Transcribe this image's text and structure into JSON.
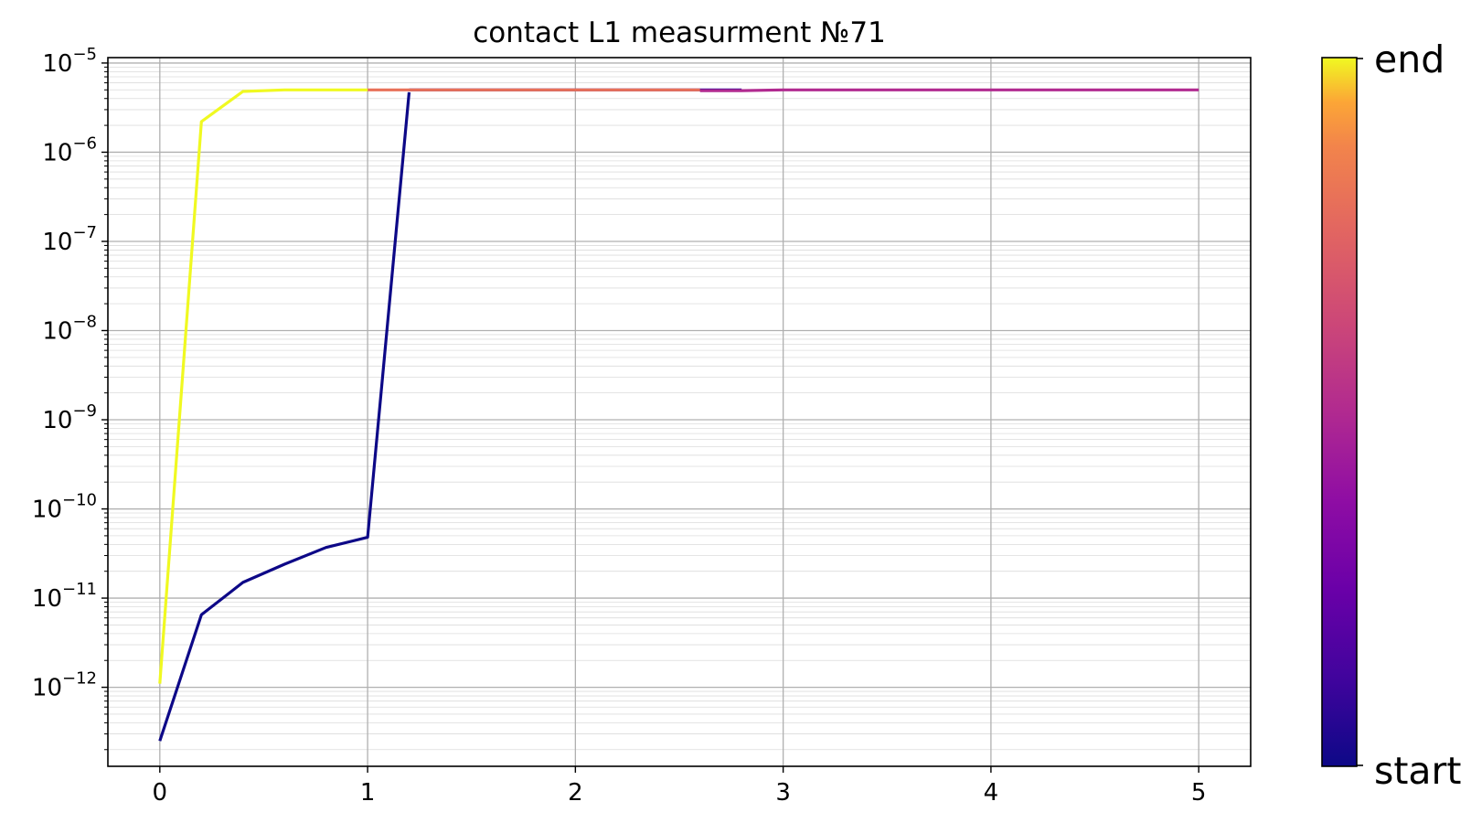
{
  "chart_data": {
    "type": "line",
    "title": "contact L1 measurment №71",
    "xlabel": "",
    "ylabel": "",
    "xlim": [
      -0.25,
      5.25
    ],
    "ylim": [
      1.3e-13,
      1.15e-05
    ],
    "yscale": "log",
    "grid": true,
    "minor_grid": true,
    "x_ticks": [
      {
        "value": 0,
        "label": "0"
      },
      {
        "value": 1,
        "label": "1"
      },
      {
        "value": 2,
        "label": "2"
      },
      {
        "value": 3,
        "label": "3"
      },
      {
        "value": 4,
        "label": "4"
      },
      {
        "value": 5,
        "label": "5"
      }
    ],
    "y_ticks": [
      {
        "exp": -5,
        "base": "10",
        "sup": "−5"
      },
      {
        "exp": -6,
        "base": "10",
        "sup": "−6"
      },
      {
        "exp": -7,
        "base": "10",
        "sup": "−7"
      },
      {
        "exp": -8,
        "base": "10",
        "sup": "−8"
      },
      {
        "exp": -9,
        "base": "10",
        "sup": "−9"
      },
      {
        "exp": -10,
        "base": "10",
        "sup": "−10"
      },
      {
        "exp": -11,
        "base": "10",
        "sup": "−11"
      },
      {
        "exp": -12,
        "base": "10",
        "sup": "−12"
      }
    ],
    "colormap": "plasma",
    "colorbar": {
      "top_label": "end",
      "bottom_label": "start"
    },
    "series": [
      {
        "color_position": 0.0,
        "x": [
          0,
          0.2,
          0.4,
          0.6,
          0.8,
          1.0,
          1.2
        ],
        "y": [
          2.5e-13,
          6.5e-12,
          1.5e-11,
          2.4e-11,
          3.7e-11,
          4.8e-11,
          4.7e-06
        ]
      },
      {
        "color_position": 0.05,
        "x": [
          1.2,
          1.4,
          1.6,
          1.8,
          2.0
        ],
        "y": [
          5e-06,
          5e-06,
          5e-06,
          5e-06,
          5e-06
        ]
      },
      {
        "color_position": 0.1,
        "x": [
          2.0,
          2.2,
          2.4,
          2.6,
          2.8
        ],
        "y": [
          5e-06,
          5e-06,
          5e-06,
          5e-06,
          5e-06
        ]
      },
      {
        "color_position": 0.5,
        "x": [
          5.0,
          4.6,
          4.2,
          3.8,
          3.4,
          3.0,
          2.8,
          2.6
        ],
        "y": [
          5e-06,
          5e-06,
          5e-06,
          5e-06,
          5e-06,
          5e-06,
          4.9e-06,
          4.9e-06
        ]
      },
      {
        "color_position": 0.8,
        "x": [
          2.6,
          2.2,
          1.8,
          1.4,
          1.0
        ],
        "y": [
          5e-06,
          5e-06,
          5e-06,
          5e-06,
          5e-06
        ]
      },
      {
        "color_position": 1.0,
        "x": [
          1.0,
          0.8,
          0.6,
          0.4,
          0.2,
          0.0
        ],
        "y": [
          5e-06,
          5e-06,
          5e-06,
          4.8e-06,
          2.2e-06,
          1.1e-12
        ]
      }
    ]
  }
}
